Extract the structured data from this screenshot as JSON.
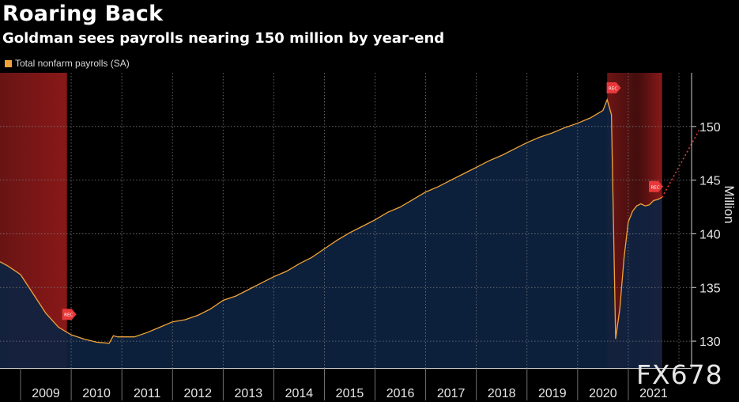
{
  "header": {
    "title": "Roaring Back",
    "subtitle": "Goldman sees payrolls nearing 150 million by year-end"
  },
  "legend": {
    "label": "Total nonfarm payrolls (SA)"
  },
  "watermark": "FX678",
  "colors": {
    "background": "#000000",
    "line": "#f0a33a",
    "area": "#0d2341",
    "recession": "#8b1a1a",
    "marker": "#e8383a",
    "grid": "#7a7a7a"
  },
  "chart_data": {
    "type": "area",
    "title": "Roaring Back",
    "subtitle": "Goldman sees payrolls nearing 150 million by year-end",
    "ylabel": "Million",
    "xlabel": "",
    "ylim": [
      127.5,
      155
    ],
    "y_ticks": [
      130,
      135,
      140,
      145,
      150
    ],
    "x_ticks": [
      "2009",
      "2010",
      "2011",
      "2012",
      "2013",
      "2014",
      "2015",
      "2016",
      "2017",
      "2018",
      "2019",
      "2020",
      "2021"
    ],
    "grid": true,
    "y_axis_side": "right",
    "series": [
      {
        "name": "Total nonfarm payrolls (SA)",
        "x": [
          "2008-01",
          "2008-04",
          "2008-07",
          "2008-10",
          "2009-01",
          "2009-04",
          "2009-07",
          "2009-10",
          "2010-01",
          "2010-04",
          "2010-05",
          "2010-06",
          "2010-10",
          "2011-01",
          "2011-04",
          "2011-07",
          "2011-10",
          "2012-01",
          "2012-04",
          "2012-07",
          "2012-10",
          "2013-01",
          "2013-04",
          "2013-07",
          "2013-10",
          "2014-01",
          "2014-04",
          "2014-07",
          "2014-10",
          "2015-01",
          "2015-04",
          "2015-07",
          "2015-10",
          "2016-01",
          "2016-04",
          "2016-07",
          "2016-10",
          "2017-01",
          "2017-04",
          "2017-07",
          "2017-10",
          "2018-01",
          "2018-04",
          "2018-07",
          "2018-10",
          "2019-01",
          "2019-04",
          "2019-07",
          "2019-10",
          "2020-01",
          "2020-02",
          "2020-03",
          "2020-04",
          "2020-05",
          "2020-06",
          "2020-07",
          "2020-08",
          "2020-09",
          "2020-10",
          "2020-11",
          "2020-12",
          "2021-01",
          "2021-02",
          "2021-03"
        ],
        "values": [
          137.4,
          137.0,
          136.2,
          134.4,
          132.6,
          131.3,
          130.6,
          130.2,
          129.9,
          129.8,
          130.5,
          130.4,
          130.4,
          130.8,
          131.3,
          131.8,
          132.0,
          132.4,
          133.0,
          133.8,
          134.2,
          134.8,
          135.4,
          136.0,
          136.5,
          137.2,
          137.8,
          138.6,
          139.4,
          140.1,
          140.7,
          141.3,
          142.0,
          142.5,
          143.2,
          143.9,
          144.4,
          145.0,
          145.6,
          146.2,
          146.8,
          147.3,
          147.9,
          148.5,
          149.0,
          149.4,
          149.9,
          150.3,
          150.8,
          151.5,
          152.5,
          151.1,
          130.2,
          133.0,
          137.8,
          141.1,
          142.1,
          142.6,
          142.8,
          142.6,
          142.7,
          143.1,
          143.2,
          143.4
        ],
        "color": "#f0a33a"
      },
      {
        "name": "",
        "style": "dotted",
        "x": [
          "2021-03",
          "2021-12"
        ],
        "values": [
          143.4,
          149.8
        ],
        "color": "#e8383a"
      }
    ],
    "recessions": [
      {
        "start": "2008-01",
        "end": "2009-06"
      },
      {
        "start": "2020-02",
        "end": "2021-03"
      }
    ],
    "markers": [
      {
        "label": "REC",
        "x": "2009-06",
        "value": 132.5
      },
      {
        "label": "REC",
        "x": "2020-03",
        "value": 153.6
      },
      {
        "label": "REC",
        "x": "2021-01",
        "value": 144.4
      }
    ]
  }
}
